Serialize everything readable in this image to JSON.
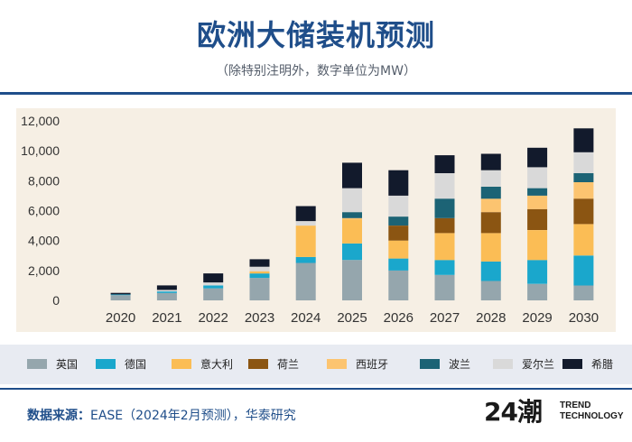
{
  "header": {
    "title": "欧洲大储装机预测",
    "subtitle": "（除特别注明外，数字单位为MW）"
  },
  "legend": [
    {
      "label": "英国",
      "color": "#95a6ad"
    },
    {
      "label": "德国",
      "color": "#1aa7cc"
    },
    {
      "label": "意大利",
      "color": "#fbbd55"
    },
    {
      "label": "荷兰",
      "color": "#8b5512"
    },
    {
      "label": "西班牙",
      "color": "#fcc470"
    },
    {
      "label": "波兰",
      "color": "#1c6375"
    },
    {
      "label": "爱尔兰",
      "color": "#d9d9d9"
    },
    {
      "label": "希腊",
      "color": "#121a2c"
    }
  ],
  "source": {
    "prefix": "数据来源：",
    "text": "EASE（2024年2月预测），华泰研究"
  },
  "logo": {
    "mark": "24潮",
    "line1": "TREND",
    "line2": "TECHNOLOGY"
  },
  "chart_data": {
    "type": "bar",
    "stacked": true,
    "categories": [
      "2020",
      "2021",
      "2022",
      "2023",
      "2024",
      "2025",
      "2026",
      "2027",
      "2028",
      "2029",
      "2030"
    ],
    "ylim": [
      0,
      12000
    ],
    "yticks": [
      0,
      2000,
      4000,
      6000,
      8000,
      10000,
      12000
    ],
    "ytick_labels": [
      "0",
      "2,000",
      "4,000",
      "6,000",
      "8,000",
      "10,000",
      "12,000"
    ],
    "grid": false,
    "legend_position": "bottom",
    "series": [
      {
        "name": "英国",
        "color": "#95a6ad",
        "values": [
          350,
          500,
          800,
          1500,
          2500,
          2700,
          2000,
          1700,
          1300,
          1100,
          1000
        ]
      },
      {
        "name": "德国",
        "color": "#1aa7cc",
        "values": [
          50,
          100,
          200,
          300,
          400,
          1100,
          800,
          1000,
          1300,
          1600,
          2000
        ]
      },
      {
        "name": "意大利",
        "color": "#fbbd55",
        "values": [
          0,
          0,
          0,
          150,
          2100,
          1600,
          1200,
          1800,
          1900,
          2000,
          2100
        ]
      },
      {
        "name": "荷兰",
        "color": "#8b5512",
        "values": [
          0,
          0,
          0,
          0,
          0,
          0,
          1000,
          1000,
          1400,
          1400,
          1700
        ]
      },
      {
        "name": "西班牙",
        "color": "#fcc470",
        "values": [
          0,
          0,
          0,
          0,
          0,
          100,
          0,
          0,
          900,
          900,
          1100
        ]
      },
      {
        "name": "波兰",
        "color": "#1c6375",
        "values": [
          0,
          0,
          0,
          0,
          0,
          400,
          600,
          1300,
          800,
          500,
          600
        ]
      },
      {
        "name": "爱尔兰",
        "color": "#d9d9d9",
        "values": [
          0,
          100,
          200,
          300,
          300,
          1600,
          1400,
          1700,
          1100,
          1400,
          1400
        ]
      },
      {
        "name": "希腊",
        "color": "#121a2c",
        "values": [
          100,
          300,
          600,
          500,
          1000,
          1700,
          1700,
          1200,
          1100,
          1300,
          1600
        ]
      }
    ]
  }
}
